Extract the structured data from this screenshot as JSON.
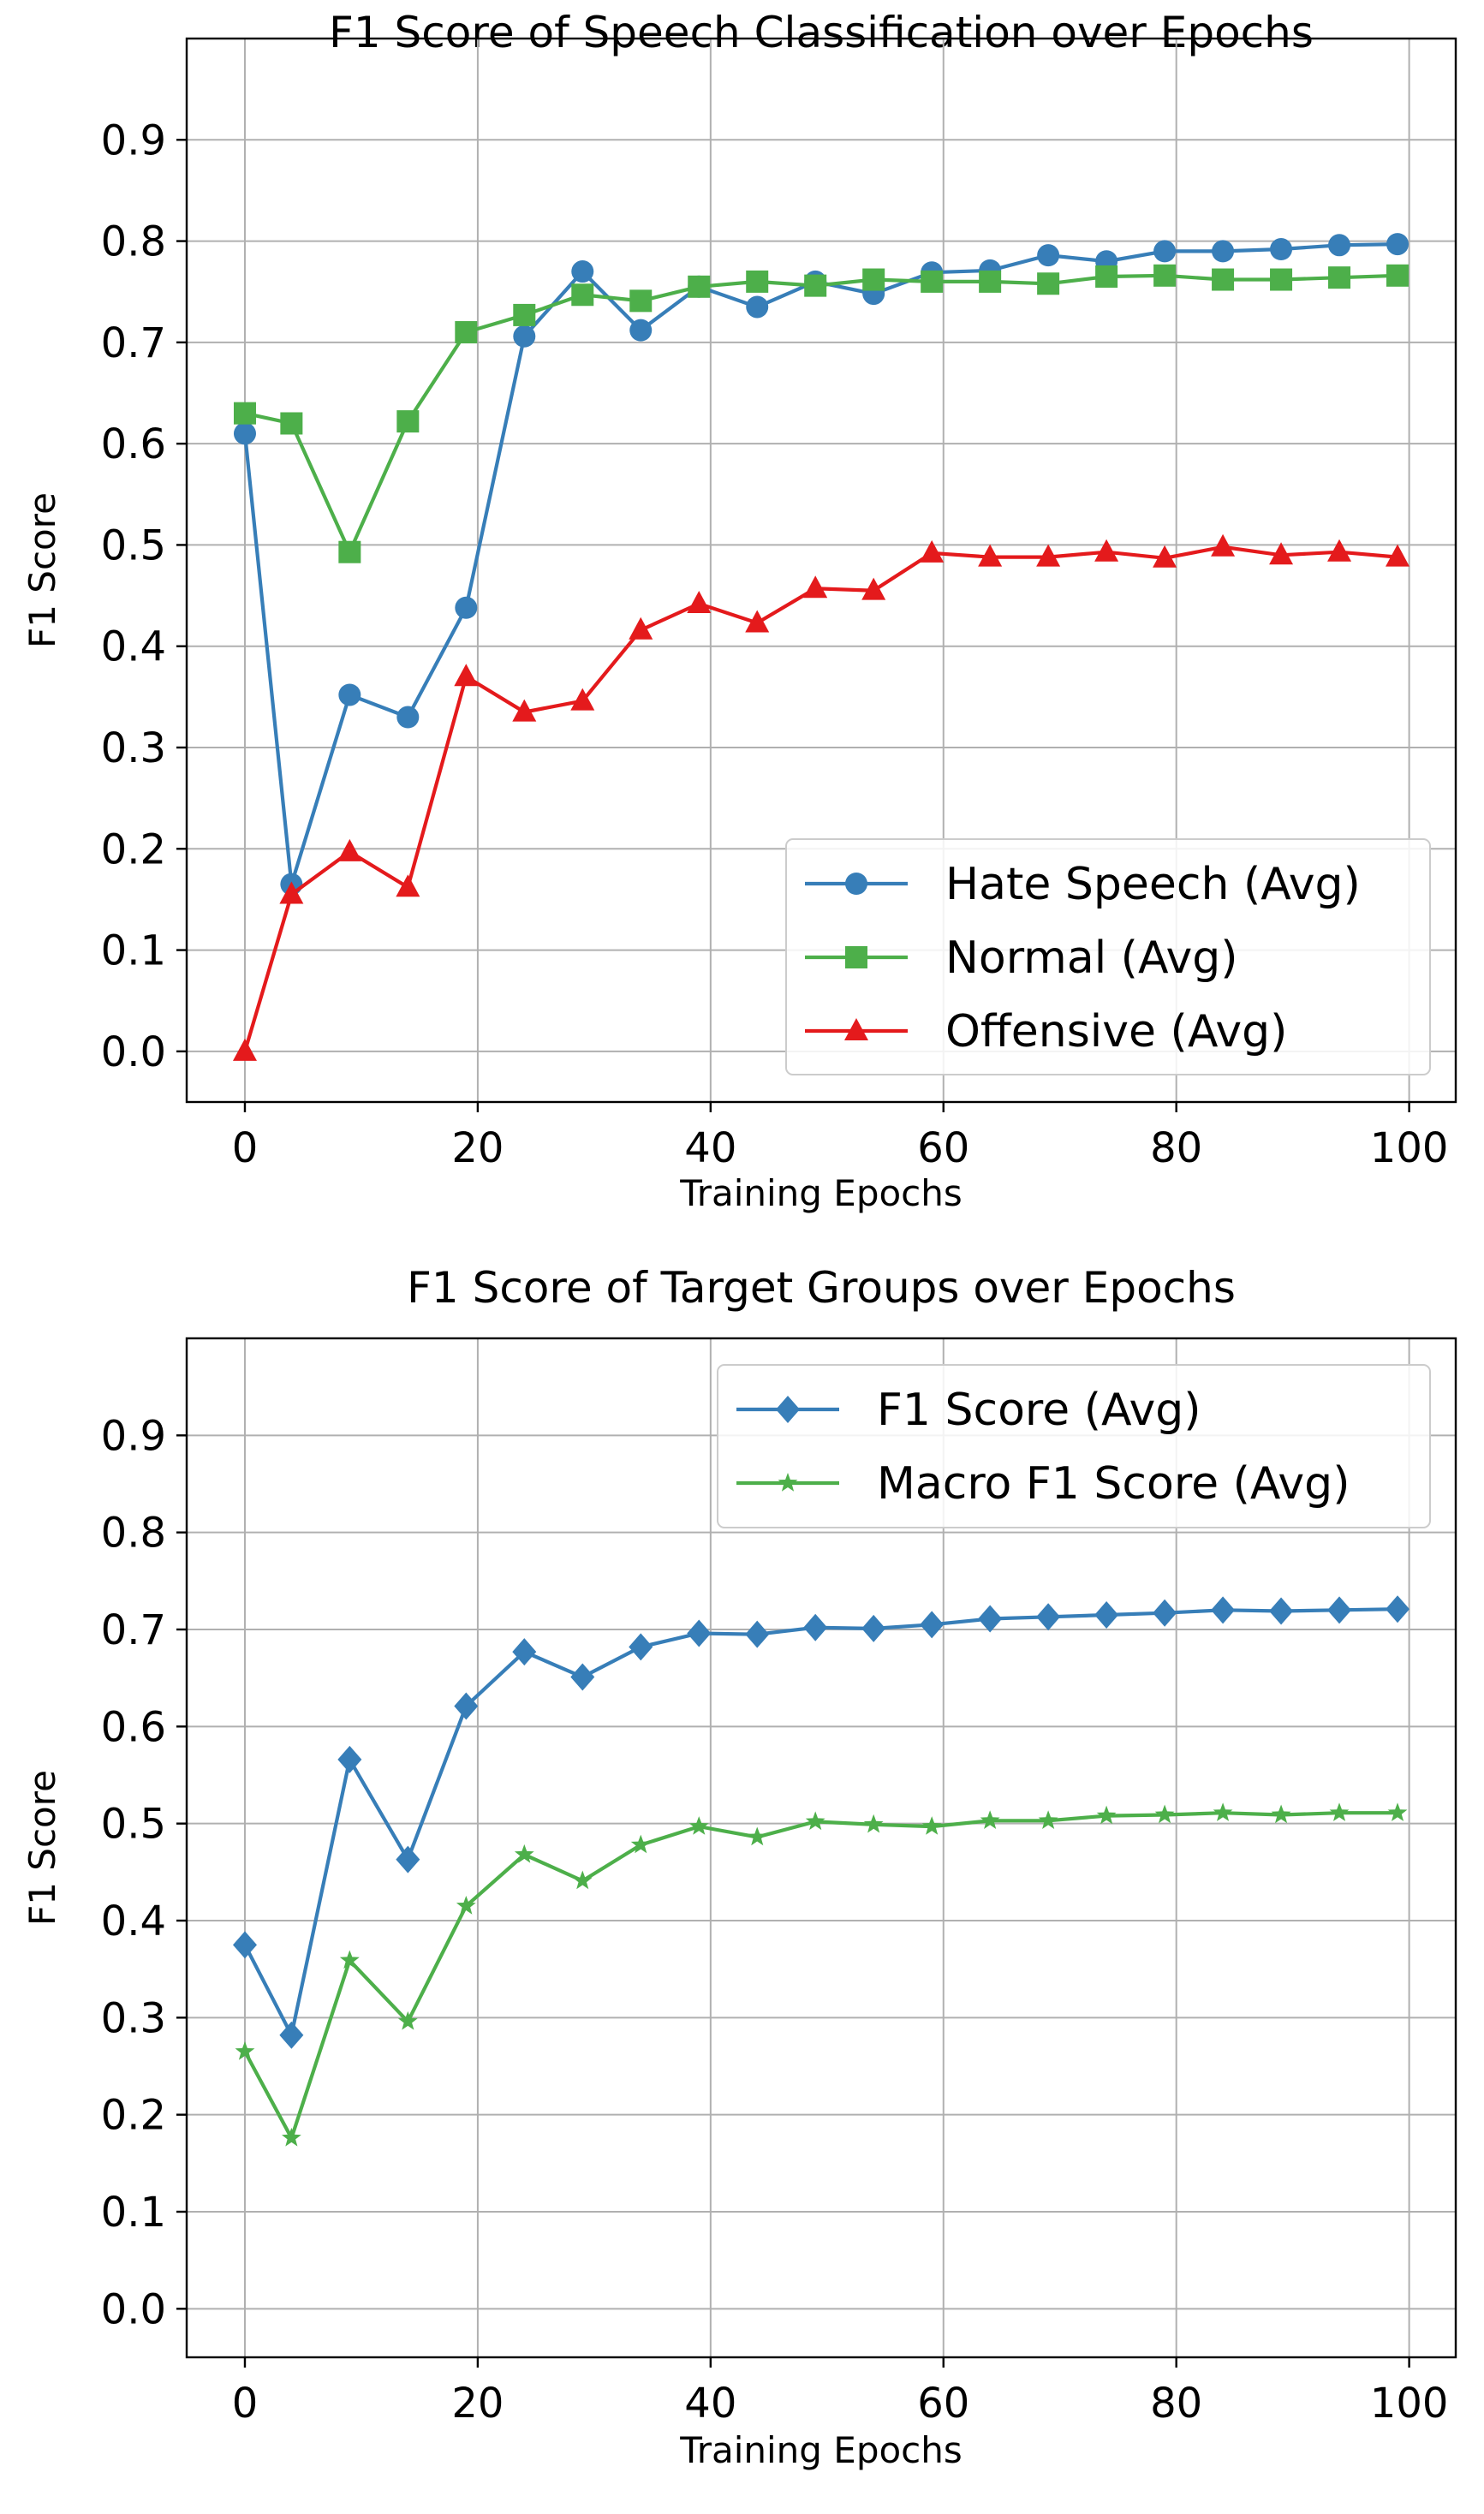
{
  "chart_data": [
    {
      "type": "line",
      "title": "F1 Score of Speech Classification over Epochs",
      "xlabel": "Training Epochs",
      "ylabel": "F1 Score",
      "xlim": [
        -5,
        104
      ],
      "ylim": [
        -0.05,
        1.0
      ],
      "xticks": [
        0,
        20,
        40,
        60,
        80,
        100
      ],
      "xtick_labels": [
        "0",
        "20",
        "40",
        "60",
        "80",
        "100"
      ],
      "yticks": [
        0.0,
        0.1,
        0.2,
        0.3,
        0.4,
        0.5,
        0.6,
        0.7,
        0.8,
        0.9
      ],
      "ytick_labels": [
        "0.0",
        "0.1",
        "0.2",
        "0.3",
        "0.4",
        "0.5",
        "0.6",
        "0.7",
        "0.8",
        "0.9"
      ],
      "grid": true,
      "legend_position": "lower-right",
      "x": [
        0,
        4,
        9,
        14,
        19,
        24,
        29,
        34,
        39,
        44,
        49,
        54,
        59,
        64,
        69,
        74,
        79,
        84,
        89,
        94,
        99
      ],
      "series": [
        {
          "name": "Hate Speech (Avg)",
          "color": "#377eb8",
          "marker": "circle",
          "values": [
            0.61,
            0.165,
            0.352,
            0.33,
            0.438,
            0.706,
            0.77,
            0.712,
            0.755,
            0.735,
            0.76,
            0.748,
            0.769,
            0.771,
            0.786,
            0.78,
            0.79,
            0.79,
            0.792,
            0.796,
            0.797
          ]
        },
        {
          "name": "Normal (Avg)",
          "color": "#4daf4a",
          "marker": "square",
          "values": [
            0.63,
            0.62,
            0.493,
            0.622,
            0.71,
            0.727,
            0.747,
            0.741,
            0.755,
            0.76,
            0.756,
            0.762,
            0.76,
            0.76,
            0.758,
            0.765,
            0.766,
            0.762,
            0.762,
            0.764,
            0.766
          ]
        },
        {
          "name": "Offensive (Avg)",
          "color": "#e41a1c",
          "marker": "triangle",
          "values": [
            0.0,
            0.155,
            0.197,
            0.162,
            0.37,
            0.335,
            0.346,
            0.416,
            0.442,
            0.423,
            0.457,
            0.455,
            0.492,
            0.488,
            0.488,
            0.493,
            0.487,
            0.498,
            0.49,
            0.493,
            0.488
          ]
        }
      ]
    },
    {
      "type": "line",
      "title": "F1 Score of Target Groups over Epochs",
      "xlabel": "Training Epochs",
      "ylabel": "F1 Score",
      "xlim": [
        -5,
        104
      ],
      "ylim": [
        -0.05,
        1.0
      ],
      "xticks": [
        0,
        20,
        40,
        60,
        80,
        100
      ],
      "xtick_labels": [
        "0",
        "20",
        "40",
        "60",
        "80",
        "100"
      ],
      "yticks": [
        0.0,
        0.1,
        0.2,
        0.3,
        0.4,
        0.5,
        0.6,
        0.7,
        0.8,
        0.9
      ],
      "ytick_labels": [
        "0.0",
        "0.1",
        "0.2",
        "0.3",
        "0.4",
        "0.5",
        "0.6",
        "0.7",
        "0.8",
        "0.9"
      ],
      "grid": true,
      "legend_position": "upper-right",
      "x": [
        0,
        4,
        9,
        14,
        19,
        24,
        29,
        34,
        39,
        44,
        49,
        54,
        59,
        64,
        69,
        74,
        79,
        84,
        89,
        94,
        99
      ],
      "series": [
        {
          "name": "F1 Score (Avg)",
          "color": "#377eb8",
          "marker": "diamond",
          "values": [
            0.375,
            0.282,
            0.566,
            0.463,
            0.621,
            0.677,
            0.651,
            0.682,
            0.696,
            0.695,
            0.702,
            0.701,
            0.705,
            0.711,
            0.713,
            0.715,
            0.717,
            0.72,
            0.719,
            0.72,
            0.721
          ]
        },
        {
          "name": "Macro F1 Score (Avg)",
          "color": "#4daf4a",
          "marker": "star",
          "values": [
            0.265,
            0.176,
            0.359,
            0.296,
            0.415,
            0.468,
            0.441,
            0.478,
            0.497,
            0.486,
            0.502,
            0.499,
            0.497,
            0.503,
            0.503,
            0.508,
            0.509,
            0.511,
            0.509,
            0.511,
            0.511
          ]
        }
      ]
    }
  ]
}
